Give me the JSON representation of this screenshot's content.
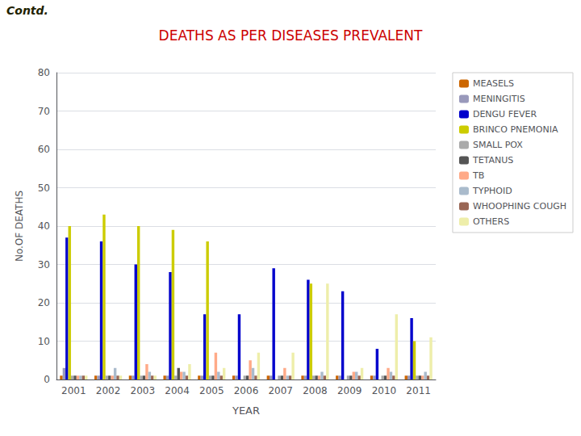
{
  "chart_data": {
    "type": "bar",
    "title": "DEATHS AS PER DISEASES PREVALENT",
    "annotation": "Contd.",
    "x_label": "YEAR",
    "y_label": "No.OF DEATHS",
    "categories": [
      2001,
      2002,
      2003,
      2004,
      2005,
      2006,
      2007,
      2008,
      2009,
      2010,
      2011
    ],
    "series": [
      {
        "name": "MEASELS",
        "color": "#cc6600",
        "values": [
          1,
          1,
          1,
          1,
          1,
          1,
          1,
          1,
          1,
          1,
          1
        ]
      },
      {
        "name": "MENINGITIS",
        "color": "#9999bb",
        "values": [
          3,
          1,
          1,
          1,
          1,
          1,
          1,
          1,
          1,
          1,
          1
        ]
      },
      {
        "name": "DENGU FEVER",
        "color": "#0000cc",
        "values": [
          37,
          36,
          30,
          28,
          17,
          17,
          29,
          26,
          23,
          8,
          16
        ]
      },
      {
        "name": "BRINCO PNEMONIA",
        "color": "#cccc00",
        "values": [
          40,
          43,
          40,
          39,
          36,
          0,
          0,
          25,
          0,
          0,
          10
        ]
      },
      {
        "name": "SMALL POX",
        "color": "#aaaaaa",
        "values": [
          1,
          1,
          1,
          1,
          1,
          1,
          1,
          1,
          1,
          1,
          1
        ]
      },
      {
        "name": "TETANUS",
        "color": "#555555",
        "values": [
          1,
          1,
          1,
          3,
          1,
          1,
          1,
          1,
          1,
          1,
          1
        ]
      },
      {
        "name": "TB",
        "color": "#ffaa88",
        "values": [
          1,
          1,
          4,
          2,
          7,
          5,
          3,
          1,
          2,
          3,
          1
        ]
      },
      {
        "name": "TYPHOID",
        "color": "#aabbcc",
        "values": [
          1,
          3,
          2,
          2,
          2,
          3,
          1,
          2,
          2,
          2,
          2
        ]
      },
      {
        "name": "WHOOPHING COUGH",
        "color": "#996655",
        "values": [
          1,
          1,
          1,
          1,
          1,
          1,
          1,
          1,
          1,
          1,
          1
        ]
      },
      {
        "name": "OTHERS",
        "color": "#eeeeaa",
        "values": [
          1,
          1,
          1,
          4,
          3,
          7,
          7,
          25,
          3,
          17,
          11
        ]
      }
    ],
    "ylim": [
      0,
      80
    ],
    "yticks": [
      0,
      10,
      20,
      30,
      40,
      50,
      60,
      70,
      80
    ],
    "grid": true,
    "legend": "right"
  }
}
